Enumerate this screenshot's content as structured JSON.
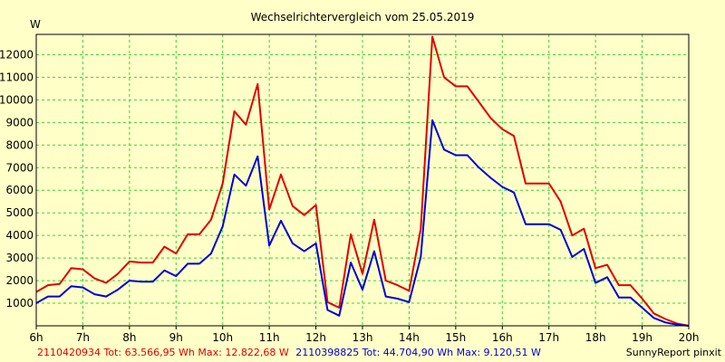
{
  "chart_data": {
    "type": "line",
    "title": "Wechselrichtervergleich vom 25.05.2019",
    "ylabel": "W",
    "ylim": [
      0,
      12900
    ],
    "yticks": [
      1000,
      2000,
      3000,
      4000,
      5000,
      6000,
      7000,
      8000,
      9000,
      10000,
      11000,
      12000
    ],
    "xlim": [
      6,
      20
    ],
    "xticks": [
      "6h",
      "7h",
      "8h",
      "9h",
      "10h",
      "11h",
      "12h",
      "13h",
      "14h",
      "15h",
      "16h",
      "17h",
      "18h",
      "19h",
      "20h"
    ],
    "grid": true,
    "x": [
      6,
      6.25,
      6.5,
      6.75,
      7,
      7.25,
      7.5,
      7.75,
      8,
      8.25,
      8.5,
      8.75,
      9,
      9.25,
      9.5,
      9.75,
      10,
      10.25,
      10.5,
      10.75,
      11,
      11.25,
      11.5,
      11.75,
      12,
      12.25,
      12.5,
      12.75,
      13,
      13.25,
      13.5,
      13.75,
      14,
      14.25,
      14.5,
      14.75,
      15,
      15.25,
      15.5,
      15.75,
      16,
      16.25,
      16.5,
      16.75,
      17,
      17.25,
      17.5,
      17.75,
      18,
      18.25,
      18.5,
      18.75,
      19,
      19.25,
      19.5,
      19.75,
      20
    ],
    "series": [
      {
        "name": "2110420934",
        "color": "#e00000",
        "values": [
          1500,
          1800,
          1850,
          2550,
          2500,
          2100,
          1900,
          2300,
          2850,
          2800,
          2800,
          3500,
          3200,
          4050,
          4050,
          4700,
          6300,
          9500,
          8900,
          10700,
          5150,
          6700,
          5300,
          4900,
          5350,
          1050,
          800,
          4050,
          2300,
          4700,
          2000,
          1800,
          1550,
          4300,
          12800,
          11000,
          10600,
          10600,
          9900,
          9200,
          8700,
          8400,
          6300,
          6300,
          6300,
          5500,
          4000,
          4300,
          2550,
          2700,
          1800,
          1800,
          1200,
          550,
          300,
          100,
          0
        ]
      },
      {
        "name": "2110398825",
        "color": "#0000d8",
        "values": [
          1000,
          1300,
          1300,
          1750,
          1700,
          1400,
          1300,
          1600,
          2000,
          1950,
          1950,
          2450,
          2200,
          2750,
          2750,
          3200,
          4400,
          6700,
          6200,
          7500,
          3550,
          4650,
          3650,
          3300,
          3650,
          700,
          450,
          2800,
          1600,
          3300,
          1300,
          1200,
          1050,
          3050,
          9100,
          7800,
          7550,
          7550,
          7000,
          6550,
          6150,
          5900,
          4500,
          4500,
          4500,
          4250,
          3050,
          3400,
          1900,
          2150,
          1250,
          1250,
          800,
          350,
          150,
          50,
          0
        ]
      }
    ]
  },
  "footer": {
    "series1": "2110420934 Tot: 63.566,95 Wh Max: 12.822,68 W",
    "series2": "2110398825 Tot: 44.704,90 Wh Max: 9.120,51 W",
    "credit": "SunnyReport pinxit"
  },
  "colors": {
    "background": "#ffffc8",
    "grid": "#3cd13c",
    "series1": "#e00000",
    "series2": "#0000d8"
  }
}
